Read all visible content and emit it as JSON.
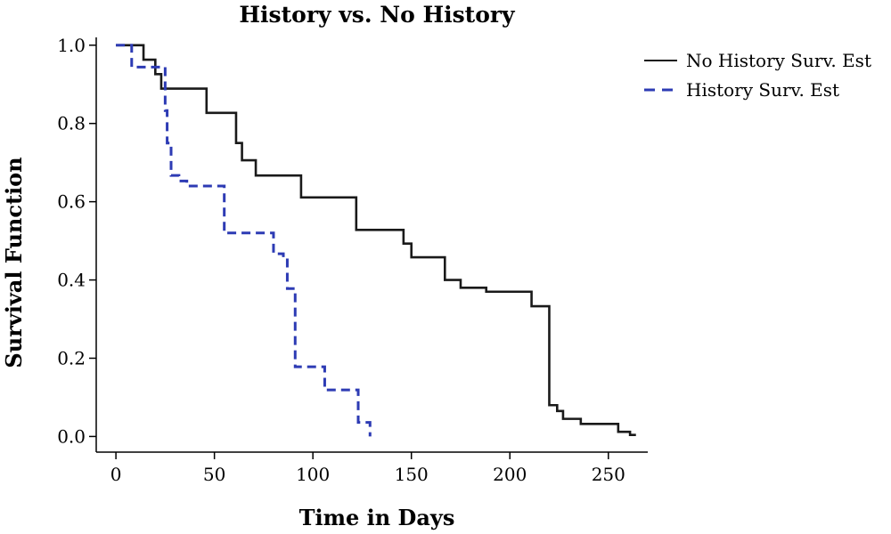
{
  "chart_data": {
    "type": "line",
    "title": "History vs. No History",
    "xlabel": "Time in Days",
    "ylabel": "Survival Function",
    "xlim": [
      -10,
      270
    ],
    "ylim": [
      -0.04,
      1.02
    ],
    "xticks": [
      0,
      50,
      100,
      150,
      200,
      250
    ],
    "xtick_labels": [
      "0",
      "50",
      "100",
      "150",
      "200",
      "250"
    ],
    "yticks": [
      0.0,
      0.2,
      0.4,
      0.6,
      0.8,
      1.0
    ],
    "ytick_labels": [
      "0.0",
      "0.2",
      "0.4",
      "0.6",
      "0.8",
      "1.0"
    ],
    "grid": false,
    "legend": "top-right",
    "series": [
      {
        "name": "No History Surv. Est",
        "color": "#1a1a1a",
        "dash": "solid",
        "x": [
          0,
          14,
          20,
          23,
          46,
          61,
          64,
          71,
          94,
          122,
          146,
          150,
          167,
          175,
          188,
          211,
          220,
          224,
          227,
          236,
          255,
          261,
          264
        ],
        "y": [
          1.0,
          0.963,
          0.926,
          0.889,
          0.827,
          0.75,
          0.706,
          0.667,
          0.611,
          0.528,
          0.493,
          0.458,
          0.4,
          0.38,
          0.37,
          0.333,
          0.08,
          0.065,
          0.045,
          0.032,
          0.012,
          0.004,
          0.004
        ]
      },
      {
        "name": "History Surv. Est",
        "color": "#2d3bb4",
        "dash": "dashed",
        "x": [
          0,
          8,
          13,
          25,
          26,
          28,
          32,
          36,
          55,
          80,
          85,
          87,
          91,
          96,
          106,
          123,
          129
        ],
        "y": [
          1.0,
          0.944,
          0.944,
          0.833,
          0.75,
          0.667,
          0.653,
          0.64,
          0.52,
          0.467,
          0.458,
          0.378,
          0.178,
          0.178,
          0.119,
          0.036,
          0.0
        ]
      }
    ]
  }
}
